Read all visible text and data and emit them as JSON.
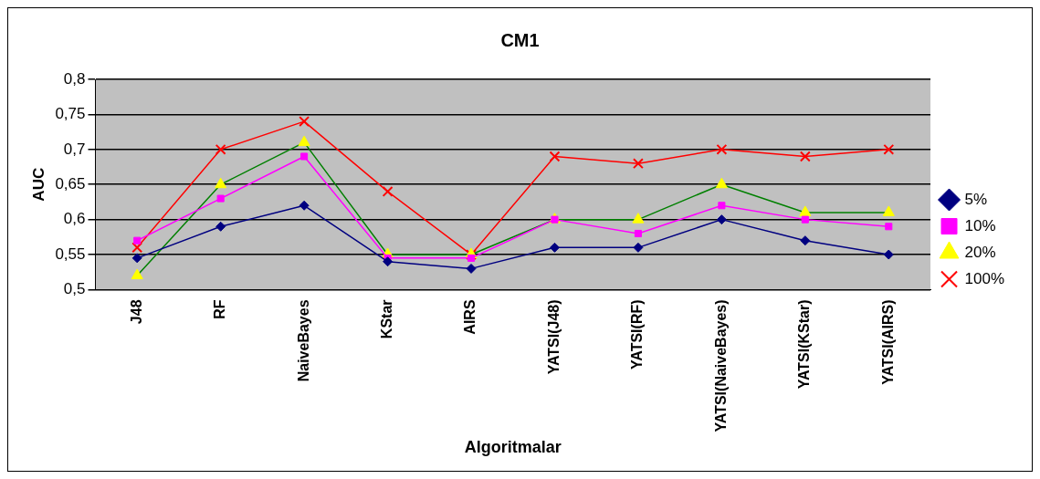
{
  "chart_data": {
    "type": "line",
    "title": "CM1",
    "xlabel": "Algoritmalar",
    "ylabel": "AUC",
    "categories": [
      "J48",
      "RF",
      "NaiveBayes",
      "KStar",
      "AIRS",
      "YATSI(J48)",
      "YATSI(RF)",
      "YATSI(NaiveBayes)",
      "YATSI(KStar)",
      "YATSI(AIRS)"
    ],
    "ylim": [
      0.5,
      0.8
    ],
    "yticks": [
      {
        "value": 0.5,
        "label": "0,5"
      },
      {
        "value": 0.55,
        "label": "0,55"
      },
      {
        "value": 0.6,
        "label": "0,6"
      },
      {
        "value": 0.65,
        "label": "0,65"
      },
      {
        "value": 0.7,
        "label": "0,7"
      },
      {
        "value": 0.75,
        "label": "0,75"
      },
      {
        "value": 0.8,
        "label": "0,8"
      }
    ],
    "grid": "y",
    "legend": "right",
    "series": [
      {
        "name": "5%",
        "color": "#000080",
        "marker": "diamond",
        "values": [
          0.545,
          0.59,
          0.62,
          0.54,
          0.53,
          0.56,
          0.56,
          0.6,
          0.57,
          0.55
        ]
      },
      {
        "name": "10%",
        "color": "#ff00ff",
        "marker": "square",
        "values": [
          0.57,
          0.63,
          0.69,
          0.545,
          0.545,
          0.6,
          0.58,
          0.62,
          0.6,
          0.59
        ]
      },
      {
        "name": "20%",
        "color": "#008000",
        "colors": [
          "#ffff00",
          "#ffff00",
          "#ffff00",
          "#ffff00",
          "#ffff00",
          "#ffff00",
          "#ffff00",
          "#ffff00",
          "#ffff00",
          "#ffff00"
        ],
        "marker": "triangle",
        "values": [
          0.52,
          0.65,
          0.71,
          0.55,
          0.55,
          0.6,
          0.6,
          0.65,
          0.61,
          0.61
        ]
      },
      {
        "name": "100%",
        "color": "#ff0000",
        "marker": "cross",
        "values": [
          0.56,
          0.7,
          0.74,
          0.64,
          0.55,
          0.69,
          0.68,
          0.7,
          0.69,
          0.7
        ]
      }
    ]
  }
}
